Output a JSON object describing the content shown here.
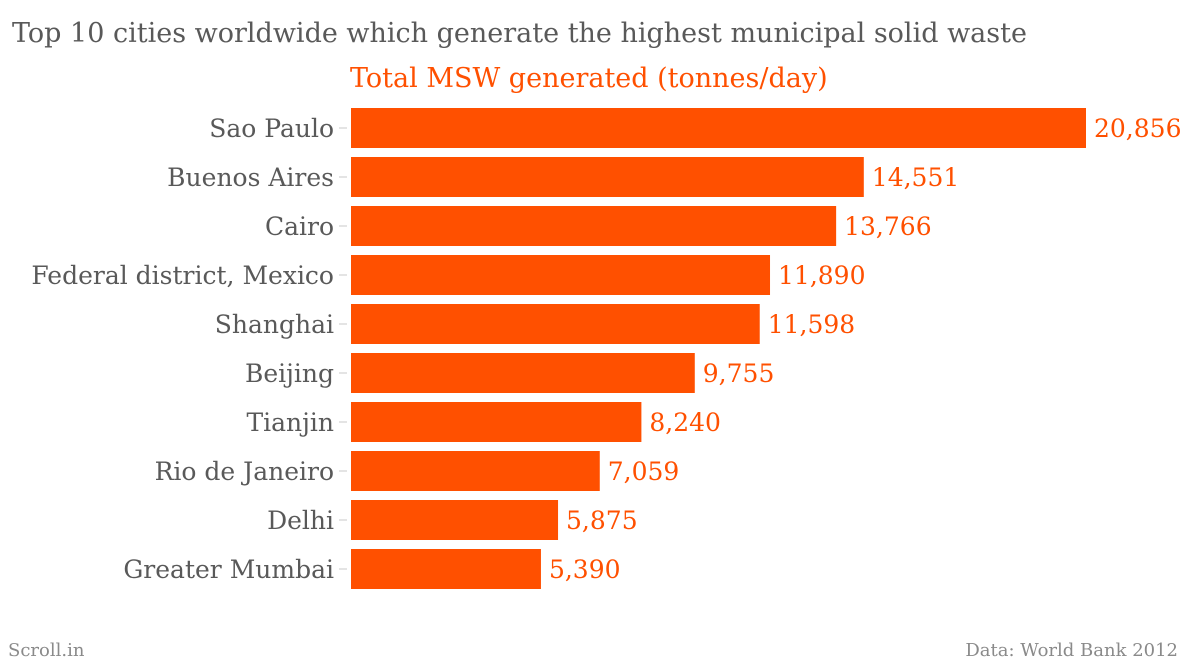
{
  "title": "Top 10 cities worldwide which generate the highest municipal solid waste",
  "footer": {
    "left": "Scroll.in",
    "right": "Data: World Bank 2012"
  },
  "colors": {
    "bar": "#ff5000",
    "label_text": "#595959",
    "footer_text": "#8a8a8a"
  },
  "chart_data": {
    "type": "bar",
    "orientation": "horizontal",
    "categories": [
      "Sao Paulo",
      "Buenos Aires",
      "Cairo",
      "Federal district, Mexico",
      "Shanghai",
      "Beijing",
      "Tianjin",
      "Rio de Janeiro",
      "Delhi",
      "Greater Mumbai"
    ],
    "series": [
      {
        "name": "Total MSW generated (tonnes/day)",
        "values": [
          20856,
          14551,
          13766,
          11890,
          11598,
          9755,
          8240,
          7059,
          5875,
          5390
        ],
        "value_labels": [
          "20,856",
          "14,551",
          "13,766",
          "11,890",
          "11,598",
          "9,755",
          "8,240",
          "7,059",
          "5,875",
          "5,390"
        ]
      }
    ],
    "xlim": [
      0,
      20856
    ],
    "grid": false,
    "legend": "none"
  }
}
